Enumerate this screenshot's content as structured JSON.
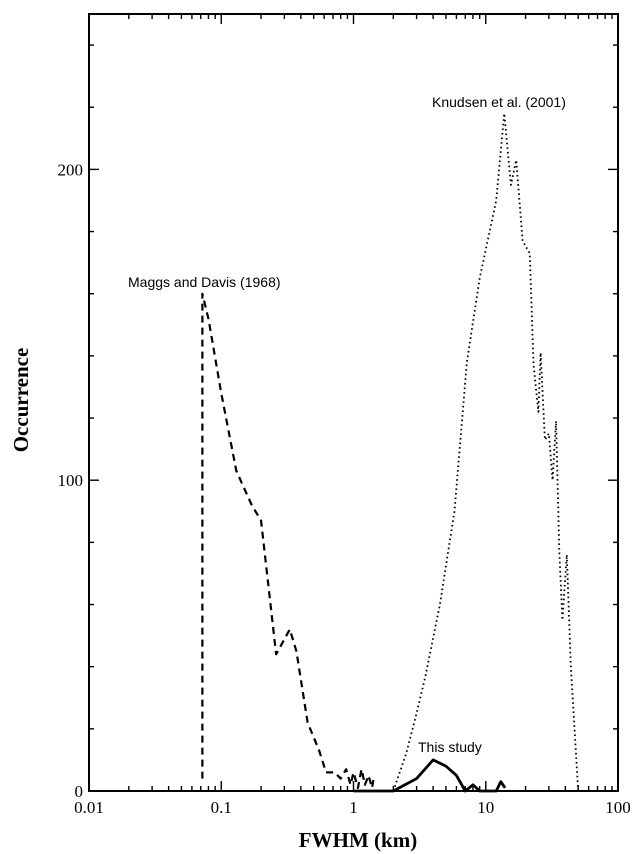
{
  "chart_data": {
    "type": "line",
    "xlabel": "FWHM (km)",
    "ylabel": "Occurrence",
    "x_scale": "log",
    "xlim": [
      0.01,
      100
    ],
    "ylim": [
      0,
      250
    ],
    "x_ticks": [
      {
        "value": 0.01,
        "label": "0.01"
      },
      {
        "value": 0.1,
        "label": "0.1"
      },
      {
        "value": 1,
        "label": "1"
      },
      {
        "value": 10,
        "label": "10"
      },
      {
        "value": 100,
        "label": "100"
      }
    ],
    "y_ticks": [
      {
        "value": 0,
        "label": "0"
      },
      {
        "value": 100,
        "label": "100"
      },
      {
        "value": 200,
        "label": "200"
      }
    ],
    "grid": false,
    "series": [
      {
        "name": "Maggs and Davis (1968)",
        "style": "dashed",
        "color": "#000000",
        "points": [
          [
            0.072,
            4
          ],
          [
            0.072,
            160
          ],
          [
            0.08,
            152
          ],
          [
            0.1,
            128
          ],
          [
            0.13,
            103
          ],
          [
            0.17,
            92
          ],
          [
            0.2,
            87
          ],
          [
            0.26,
            44
          ],
          [
            0.33,
            52
          ],
          [
            0.37,
            45
          ],
          [
            0.45,
            22
          ],
          [
            0.55,
            13
          ],
          [
            0.62,
            6
          ],
          [
            0.72,
            6
          ],
          [
            0.8,
            4
          ],
          [
            0.88,
            7
          ],
          [
            0.95,
            2
          ],
          [
            1.0,
            6
          ],
          [
            1.08,
            1
          ],
          [
            1.15,
            7
          ],
          [
            1.22,
            2
          ],
          [
            1.3,
            5
          ],
          [
            1.38,
            1
          ],
          [
            1.42,
            4
          ]
        ]
      },
      {
        "name": "Knudsen et al. (2001)",
        "style": "dotted",
        "color": "#000000",
        "points": [
          [
            2.0,
            0
          ],
          [
            2.5,
            12
          ],
          [
            3.0,
            25
          ],
          [
            3.5,
            37
          ],
          [
            4.5,
            60
          ],
          [
            5.8,
            90
          ],
          [
            7.2,
            138
          ],
          [
            9.0,
            165
          ],
          [
            12.0,
            190
          ],
          [
            13.8,
            218
          ],
          [
            15.5,
            195
          ],
          [
            17.0,
            203
          ],
          [
            19.0,
            177
          ],
          [
            21.5,
            173
          ],
          [
            23.0,
            137
          ],
          [
            25.0,
            122
          ],
          [
            26.0,
            141
          ],
          [
            28.0,
            113
          ],
          [
            30.0,
            115
          ],
          [
            32.0,
            100
          ],
          [
            34.0,
            119
          ],
          [
            36.0,
            77
          ],
          [
            38.0,
            55
          ],
          [
            41.0,
            76
          ],
          [
            44.0,
            40
          ],
          [
            50.0,
            0
          ]
        ]
      },
      {
        "name": "This study",
        "style": "solid",
        "color": "#000000",
        "points": [
          [
            1.0,
            0
          ],
          [
            2.0,
            0
          ],
          [
            3.0,
            4
          ],
          [
            4.0,
            10
          ],
          [
            5.0,
            8
          ],
          [
            6.0,
            5
          ],
          [
            7.0,
            0
          ],
          [
            8.0,
            2
          ],
          [
            9.0,
            0
          ],
          [
            12.0,
            0
          ],
          [
            13.0,
            3
          ],
          [
            14.0,
            1
          ]
        ]
      }
    ],
    "annotations": [
      {
        "text": "Maggs and Davis (1968)",
        "series": 0
      },
      {
        "text": "Knudsen et al. (2001)",
        "series": 1
      },
      {
        "text": "This study",
        "series": 2
      }
    ]
  }
}
